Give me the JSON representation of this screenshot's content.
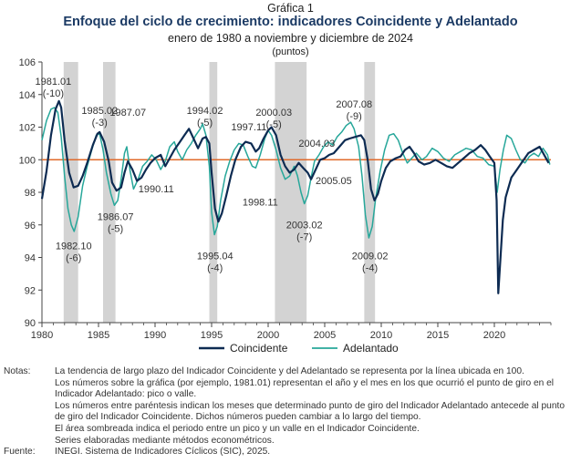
{
  "header": {
    "figure_number": "Gráfica 1",
    "title": "Enfoque del ciclo de crecimiento: indicadores Coincidente y Adelantado",
    "subtitle": "enero de 1980 a noviembre y diciembre de 2024",
    "units": "(puntos)"
  },
  "colors": {
    "coincidente": "#0d2b52",
    "adelantado": "#27a79a",
    "trend": "#e06a2b",
    "shade": "#d3d3d3"
  },
  "chart_data": {
    "type": "line",
    "x_range": [
      1980.0,
      2025.0
    ],
    "ylim": [
      90,
      106
    ],
    "y_ticks": [
      90,
      92,
      94,
      96,
      98,
      100,
      102,
      104,
      106
    ],
    "x_ticks": [
      1980,
      1985,
      1990,
      1995,
      2000,
      2005,
      2010,
      2015,
      2020
    ],
    "trend_value": 100,
    "shaded_periods": [
      [
        1981.92,
        1983.2
      ],
      [
        1985.4,
        1986.5
      ],
      [
        1994.8,
        1995.5
      ],
      [
        2000.6,
        2003.4
      ],
      [
        2008.5,
        2009.45
      ]
    ],
    "series": [
      {
        "name": "Coincidente",
        "points": [
          [
            1980.0,
            97.6
          ],
          [
            1980.4,
            99.3
          ],
          [
            1980.8,
            101.5
          ],
          [
            1981.2,
            103.1
          ],
          [
            1981.5,
            103.6
          ],
          [
            1981.7,
            103.2
          ],
          [
            1982.0,
            101.2
          ],
          [
            1982.4,
            99.2
          ],
          [
            1982.8,
            98.3
          ],
          [
            1983.2,
            98.4
          ],
          [
            1983.6,
            99.0
          ],
          [
            1984.0,
            99.8
          ],
          [
            1984.5,
            100.9
          ],
          [
            1984.9,
            101.6
          ],
          [
            1985.1,
            101.7
          ],
          [
            1985.5,
            101.1
          ],
          [
            1985.9,
            99.9
          ],
          [
            1986.2,
            98.6
          ],
          [
            1986.6,
            98.1
          ],
          [
            1987.0,
            98.3
          ],
          [
            1987.3,
            99.2
          ],
          [
            1987.6,
            99.9
          ],
          [
            1988.0,
            99.4
          ],
          [
            1988.4,
            98.7
          ],
          [
            1988.8,
            98.9
          ],
          [
            1989.2,
            99.4
          ],
          [
            1989.6,
            99.8
          ],
          [
            1990.0,
            100.1
          ],
          [
            1990.5,
            100.3
          ],
          [
            1990.9,
            99.6
          ],
          [
            1991.3,
            100.1
          ],
          [
            1991.7,
            100.6
          ],
          [
            1992.2,
            101.1
          ],
          [
            1992.6,
            101.5
          ],
          [
            1993.0,
            101.9
          ],
          [
            1993.4,
            101.3
          ],
          [
            1993.8,
            100.7
          ],
          [
            1994.2,
            101.3
          ],
          [
            1994.5,
            101.4
          ],
          [
            1994.8,
            101.0
          ],
          [
            1995.0,
            99.2
          ],
          [
            1995.3,
            97.0
          ],
          [
            1995.6,
            96.2
          ],
          [
            1995.9,
            96.7
          ],
          [
            1996.3,
            97.8
          ],
          [
            1996.7,
            99.0
          ],
          [
            1997.1,
            100.0
          ],
          [
            1997.6,
            100.8
          ],
          [
            1998.0,
            101.1
          ],
          [
            1998.5,
            101.0
          ],
          [
            1998.9,
            100.5
          ],
          [
            1999.2,
            100.7
          ],
          [
            1999.6,
            101.3
          ],
          [
            2000.0,
            101.8
          ],
          [
            2000.3,
            102.0
          ],
          [
            2000.7,
            101.5
          ],
          [
            2001.1,
            100.3
          ],
          [
            2001.5,
            99.6
          ],
          [
            2001.9,
            99.2
          ],
          [
            2002.3,
            99.4
          ],
          [
            2002.7,
            99.8
          ],
          [
            2003.1,
            99.5
          ],
          [
            2003.5,
            99.2
          ],
          [
            2003.8,
            98.8
          ],
          [
            2004.2,
            99.4
          ],
          [
            2004.6,
            100.0
          ],
          [
            2005.0,
            100.1
          ],
          [
            2005.4,
            100.3
          ],
          [
            2005.8,
            100.4
          ],
          [
            2006.3,
            100.8
          ],
          [
            2006.8,
            101.2
          ],
          [
            2007.2,
            101.3
          ],
          [
            2007.7,
            101.4
          ],
          [
            2008.2,
            101.5
          ],
          [
            2008.5,
            101.2
          ],
          [
            2008.8,
            100.0
          ],
          [
            2009.1,
            98.2
          ],
          [
            2009.4,
            97.5
          ],
          [
            2009.7,
            97.9
          ],
          [
            2010.0,
            98.7
          ],
          [
            2010.4,
            99.5
          ],
          [
            2010.8,
            99.9
          ],
          [
            2011.3,
            100.1
          ],
          [
            2011.7,
            100.2
          ],
          [
            2012.1,
            100.6
          ],
          [
            2012.5,
            100.8
          ],
          [
            2012.9,
            100.4
          ],
          [
            2013.3,
            99.9
          ],
          [
            2013.8,
            99.7
          ],
          [
            2014.3,
            99.8
          ],
          [
            2014.8,
            100.0
          ],
          [
            2015.3,
            99.8
          ],
          [
            2015.8,
            99.6
          ],
          [
            2016.3,
            99.5
          ],
          [
            2016.8,
            99.8
          ],
          [
            2017.3,
            100.1
          ],
          [
            2017.8,
            100.4
          ],
          [
            2018.3,
            100.6
          ],
          [
            2018.8,
            100.9
          ],
          [
            2019.2,
            100.6
          ],
          [
            2019.6,
            100.2
          ],
          [
            2020.0,
            99.8
          ],
          [
            2020.2,
            97.5
          ],
          [
            2020.35,
            91.8
          ],
          [
            2020.5,
            93.5
          ],
          [
            2020.75,
            96.3
          ],
          [
            2021.0,
            97.7
          ],
          [
            2021.5,
            98.9
          ],
          [
            2022.0,
            99.4
          ],
          [
            2022.5,
            99.9
          ],
          [
            2023.0,
            100.4
          ],
          [
            2023.5,
            100.6
          ],
          [
            2024.0,
            100.8
          ],
          [
            2024.4,
            100.3
          ],
          [
            2024.8,
            99.8
          ]
        ]
      },
      {
        "name": "Adelantado",
        "points": [
          [
            1980.0,
            101.2
          ],
          [
            1980.4,
            102.4
          ],
          [
            1980.8,
            103.1
          ],
          [
            1981.1,
            103.2
          ],
          [
            1981.4,
            102.9
          ],
          [
            1981.7,
            101.4
          ],
          [
            1982.0,
            99.0
          ],
          [
            1982.3,
            97.0
          ],
          [
            1982.6,
            96.0
          ],
          [
            1982.85,
            95.6
          ],
          [
            1983.2,
            96.5
          ],
          [
            1983.6,
            98.4
          ],
          [
            1984.0,
            99.6
          ],
          [
            1984.4,
            100.6
          ],
          [
            1984.8,
            101.5
          ],
          [
            1985.1,
            101.6
          ],
          [
            1985.4,
            100.6
          ],
          [
            1985.7,
            99.2
          ],
          [
            1986.1,
            97.9
          ],
          [
            1986.4,
            97.2
          ],
          [
            1986.7,
            97.5
          ],
          [
            1987.0,
            98.8
          ],
          [
            1987.3,
            100.4
          ],
          [
            1987.5,
            100.8
          ],
          [
            1987.8,
            99.3
          ],
          [
            1988.1,
            98.2
          ],
          [
            1988.5,
            98.8
          ],
          [
            1988.9,
            99.6
          ],
          [
            1989.3,
            99.9
          ],
          [
            1989.7,
            100.3
          ],
          [
            1990.1,
            100.0
          ],
          [
            1990.5,
            99.4
          ],
          [
            1990.9,
            99.9
          ],
          [
            1991.3,
            100.8
          ],
          [
            1991.7,
            101.1
          ],
          [
            1992.0,
            100.5
          ],
          [
            1992.4,
            100.0
          ],
          [
            1992.8,
            100.6
          ],
          [
            1993.2,
            101.0
          ],
          [
            1993.6,
            101.5
          ],
          [
            1994.0,
            101.9
          ],
          [
            1994.2,
            102.2
          ],
          [
            1994.5,
            101.5
          ],
          [
            1994.8,
            99.6
          ],
          [
            1995.0,
            96.8
          ],
          [
            1995.25,
            95.4
          ],
          [
            1995.5,
            95.9
          ],
          [
            1995.8,
            97.5
          ],
          [
            1996.2,
            99.0
          ],
          [
            1996.6,
            99.9
          ],
          [
            1997.0,
            100.6
          ],
          [
            1997.4,
            101.0
          ],
          [
            1997.8,
            100.9
          ],
          [
            1998.2,
            100.2
          ],
          [
            1998.6,
            99.6
          ],
          [
            1998.9,
            99.5
          ],
          [
            1999.3,
            100.3
          ],
          [
            1999.7,
            101.3
          ],
          [
            2000.0,
            101.8
          ],
          [
            2000.3,
            101.5
          ],
          [
            2000.7,
            100.6
          ],
          [
            2001.1,
            99.5
          ],
          [
            2001.5,
            98.8
          ],
          [
            2001.9,
            99.0
          ],
          [
            2002.3,
            99.6
          ],
          [
            2002.6,
            99.0
          ],
          [
            2002.9,
            98.0
          ],
          [
            2003.2,
            97.3
          ],
          [
            2003.5,
            97.8
          ],
          [
            2003.8,
            98.9
          ],
          [
            2004.1,
            99.9
          ],
          [
            2004.5,
            100.3
          ],
          [
            2004.9,
            100.8
          ],
          [
            2005.3,
            101.1
          ],
          [
            2005.7,
            100.9
          ],
          [
            2006.1,
            101.4
          ],
          [
            2006.5,
            101.7
          ],
          [
            2006.9,
            102.1
          ],
          [
            2007.3,
            102.3
          ],
          [
            2007.6,
            101.9
          ],
          [
            2008.0,
            100.8
          ],
          [
            2008.3,
            99.0
          ],
          [
            2008.6,
            96.6
          ],
          [
            2008.9,
            95.2
          ],
          [
            2009.2,
            95.9
          ],
          [
            2009.5,
            97.6
          ],
          [
            2009.9,
            99.3
          ],
          [
            2010.3,
            100.6
          ],
          [
            2010.7,
            101.5
          ],
          [
            2011.1,
            101.6
          ],
          [
            2011.5,
            101.2
          ],
          [
            2011.9,
            100.4
          ],
          [
            2012.3,
            99.8
          ],
          [
            2012.7,
            100.1
          ],
          [
            2013.1,
            100.4
          ],
          [
            2013.6,
            100.0
          ],
          [
            2014.0,
            100.2
          ],
          [
            2014.5,
            100.7
          ],
          [
            2015.0,
            100.5
          ],
          [
            2015.5,
            100.1
          ],
          [
            2016.0,
            99.9
          ],
          [
            2016.5,
            100.3
          ],
          [
            2017.0,
            100.5
          ],
          [
            2017.5,
            100.7
          ],
          [
            2018.0,
            100.6
          ],
          [
            2018.5,
            100.2
          ],
          [
            2019.0,
            100.1
          ],
          [
            2019.5,
            99.7
          ],
          [
            2020.0,
            99.6
          ],
          [
            2020.25,
            98.0
          ],
          [
            2020.5,
            99.4
          ],
          [
            2020.8,
            100.6
          ],
          [
            2021.1,
            101.5
          ],
          [
            2021.5,
            101.3
          ],
          [
            2021.9,
            100.6
          ],
          [
            2022.3,
            100.0
          ],
          [
            2022.7,
            99.8
          ],
          [
            2023.1,
            100.2
          ],
          [
            2023.5,
            100.4
          ],
          [
            2023.9,
            100.2
          ],
          [
            2024.3,
            100.7
          ],
          [
            2024.7,
            100.3
          ],
          [
            2024.9,
            99.7
          ]
        ]
      }
    ],
    "annotations": [
      {
        "text": [
          "1981.01",
          "(-10)"
        ],
        "x": 1981.0,
        "y": 104.6
      },
      {
        "text": [
          "1985.02",
          "(-3)"
        ],
        "x": 1985.1,
        "y": 102.8
      },
      {
        "text": [
          "1987.07"
        ],
        "x": 1987.6,
        "y": 102.7
      },
      {
        "text": [
          "1982.10",
          "(-6)"
        ],
        "x": 1982.8,
        "y": 94.5
      },
      {
        "text": [
          "1986.07",
          "(-5)"
        ],
        "x": 1986.5,
        "y": 96.3
      },
      {
        "text": [
          "1990.11"
        ],
        "x": 1990.1,
        "y": 98.0
      },
      {
        "text": [
          "1994.02",
          "(-5)"
        ],
        "x": 1994.4,
        "y": 102.8
      },
      {
        "text": [
          "1997.11"
        ],
        "x": 1998.3,
        "y": 101.8
      },
      {
        "text": [
          "1995.04",
          "(-4)"
        ],
        "x": 1995.3,
        "y": 93.9
      },
      {
        "text": [
          "1998.11"
        ],
        "x": 1999.3,
        "y": 97.2
      },
      {
        "text": [
          "2000.03",
          "(-5)"
        ],
        "x": 2000.5,
        "y": 102.7
      },
      {
        "text": [
          "2004.03"
        ],
        "x": 2004.3,
        "y": 100.8
      },
      {
        "text": [
          "2003.02",
          "(-7)"
        ],
        "x": 2003.2,
        "y": 95.8
      },
      {
        "text": [
          "2005.05"
        ],
        "x": 2005.8,
        "y": 98.5
      },
      {
        "text": [
          "2007.08",
          "(-9)"
        ],
        "x": 2007.6,
        "y": 103.2
      },
      {
        "text": [
          "2009.02",
          "(-4)"
        ],
        "x": 2009.0,
        "y": 93.9
      }
    ]
  },
  "legend": {
    "items": [
      {
        "label": "Coincidente"
      },
      {
        "label": "Adelantado"
      }
    ]
  },
  "notes": {
    "label": "Notas:",
    "lines": [
      "La tendencia de largo plazo del Indicador Coincidente y del Adelantado se representa por la línea ubicada en 100.",
      "Los números sobre la gráfica (por ejemplo, 1981.01) representan el año y el mes en los que ocurrió el punto de giro en el Indicador Adelantado: pico o valle.",
      "Los números entre paréntesis indican los meses que determinado punto de giro del Indicador Adelantado antecede al punto de giro del Indicador Coincidente. Dichos números pueden cambiar a lo largo del tiempo.",
      "El área sombreada indica el periodo entre un pico y un valle en el Indicador Coincidente.",
      "Series elaboradas mediante métodos econométricos."
    ],
    "source_label": "Fuente:",
    "source": "INEGI. Sistema de Indicadores Cíclicos (SIC), 2025."
  }
}
